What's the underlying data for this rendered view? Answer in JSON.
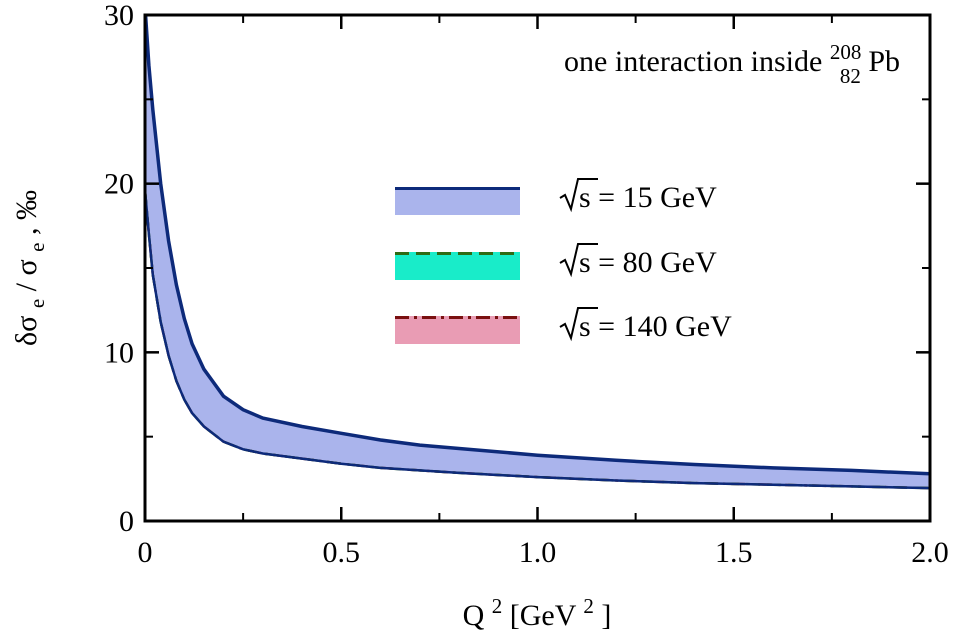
{
  "chart_data": {
    "type": "area",
    "annotation": {
      "prefix": "one interaction inside ",
      "mass_number": "208",
      "atomic_number": "82",
      "element": "Pb"
    },
    "xlabel": {
      "base": "Q",
      "exp": "2",
      "unit_open": " [GeV",
      "unit_exp": "2",
      "unit_close": "]"
    },
    "ylabel": {
      "delta": "δσ",
      "sub1": "e",
      "slash": " / σ",
      "sub2": "e",
      "suffix": ", ‰"
    },
    "xlim": [
      0,
      2.0
    ],
    "ylim": [
      0,
      30
    ],
    "x_ticks": [
      "0",
      "0.5",
      "1.0",
      "1.5",
      "2.0"
    ],
    "y_ticks": [
      "0",
      "10",
      "20",
      "30"
    ],
    "x_tick_values": [
      0,
      0.5,
      1.0,
      1.5,
      2.0
    ],
    "y_tick_values": [
      0,
      10,
      20,
      30
    ],
    "x_minor_tick_values": [
      0.25,
      0.75,
      1.25,
      1.75
    ],
    "y_minor_tick_values": [
      5,
      15,
      25
    ],
    "grid": false,
    "legend_position": "center-right",
    "x": [
      0,
      0.01,
      0.02,
      0.04,
      0.06,
      0.08,
      0.1,
      0.12,
      0.15,
      0.2,
      0.25,
      0.3,
      0.4,
      0.5,
      0.6,
      0.7,
      0.8,
      1.0,
      1.2,
      1.4,
      1.6,
      1.8,
      2.0
    ],
    "series": [
      {
        "name_prefix": "√",
        "name": "s = 15 GeV",
        "color": "#0d2a7a",
        "fill": "#aab4ec",
        "dash": "",
        "upper": [
          30.5,
          27.0,
          24.4,
          20.0,
          16.6,
          14.0,
          12.0,
          10.5,
          9.0,
          7.4,
          6.6,
          6.1,
          5.6,
          5.2,
          4.8,
          4.5,
          4.3,
          3.9,
          3.6,
          3.35,
          3.15,
          3.0,
          2.8
        ],
        "lower": [
          19.6,
          17.0,
          14.6,
          11.8,
          9.8,
          8.3,
          7.2,
          6.4,
          5.6,
          4.7,
          4.25,
          4.0,
          3.7,
          3.4,
          3.15,
          3.0,
          2.85,
          2.6,
          2.4,
          2.25,
          2.15,
          2.05,
          1.95
        ]
      },
      {
        "name_prefix": "√",
        "name": "s = 80 GeV",
        "color": "#2e6b14",
        "fill": "#19ecc9",
        "dash": "14 7",
        "upper": [
          30.5,
          27.0,
          24.4,
          20.0,
          16.6,
          14.0,
          12.0,
          10.5,
          9.0,
          7.4,
          6.6,
          6.1,
          5.6,
          5.2,
          4.8,
          4.5,
          4.3,
          3.9,
          3.6,
          3.35,
          3.15,
          3.0,
          2.8
        ],
        "lower": [
          19.6,
          17.0,
          14.6,
          11.8,
          9.8,
          8.3,
          7.2,
          6.4,
          5.6,
          4.7,
          4.25,
          4.0,
          3.7,
          3.4,
          3.15,
          3.0,
          2.85,
          2.6,
          2.4,
          2.25,
          2.15,
          2.05,
          1.95
        ]
      },
      {
        "name_prefix": "√",
        "name": "s = 140 GeV",
        "color": "#7a1010",
        "fill": "#e99cb4",
        "dash": "14 5 3 5",
        "upper": [
          30.5,
          27.0,
          24.4,
          20.0,
          16.6,
          14.0,
          12.0,
          10.5,
          9.0,
          7.4,
          6.6,
          6.1,
          5.6,
          5.2,
          4.8,
          4.5,
          4.3,
          3.9,
          3.6,
          3.35,
          3.15,
          3.0,
          2.8
        ],
        "lower": [
          19.6,
          17.0,
          14.6,
          11.8,
          9.8,
          8.3,
          7.2,
          6.4,
          5.6,
          4.7,
          4.25,
          4.0,
          3.7,
          3.4,
          3.15,
          3.0,
          2.85,
          2.6,
          2.4,
          2.25,
          2.15,
          2.05,
          1.95
        ]
      }
    ]
  }
}
